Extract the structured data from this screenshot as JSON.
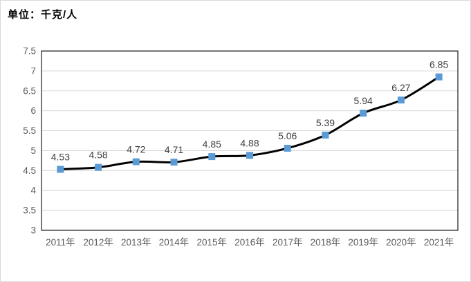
{
  "chart": {
    "unit_label": "单位：千克/人"
  },
  "chart_data": {
    "type": "line",
    "title": "单位：千克/人",
    "categories": [
      "2011年",
      "2012年",
      "2013年",
      "2014年",
      "2015年",
      "2016年",
      "2017年",
      "2018年",
      "2019年",
      "2020年",
      "2021年"
    ],
    "values": [
      4.53,
      4.58,
      4.72,
      4.71,
      4.85,
      4.88,
      5.06,
      5.39,
      5.94,
      6.27,
      6.85
    ],
    "data_labels": [
      "4.53",
      "4.58",
      "4.72",
      "4.71",
      "4.85",
      "4.88",
      "5.06",
      "5.39",
      "5.94",
      "6.27",
      "6.85"
    ],
    "xlabel": "",
    "ylabel": "",
    "ylim": [
      3,
      7.5
    ],
    "ytick_step": 0.5,
    "yticks": [
      "3",
      "3.5",
      "4",
      "4.5",
      "5",
      "5.5",
      "6",
      "6.5",
      "7",
      "7.5"
    ],
    "grid": "horizontal",
    "legend": "none",
    "line_style": "smooth",
    "marker_shape": "square",
    "colors": {
      "line": "#000000",
      "marker": "#5B9BD5",
      "gridline": "#D9D9D9",
      "plot_border": "#1a1a1a",
      "axis_text": "#595959",
      "data_label_text": "#404040",
      "chart_border": "#D9D9D9",
      "background": "#FFFFFF"
    }
  }
}
